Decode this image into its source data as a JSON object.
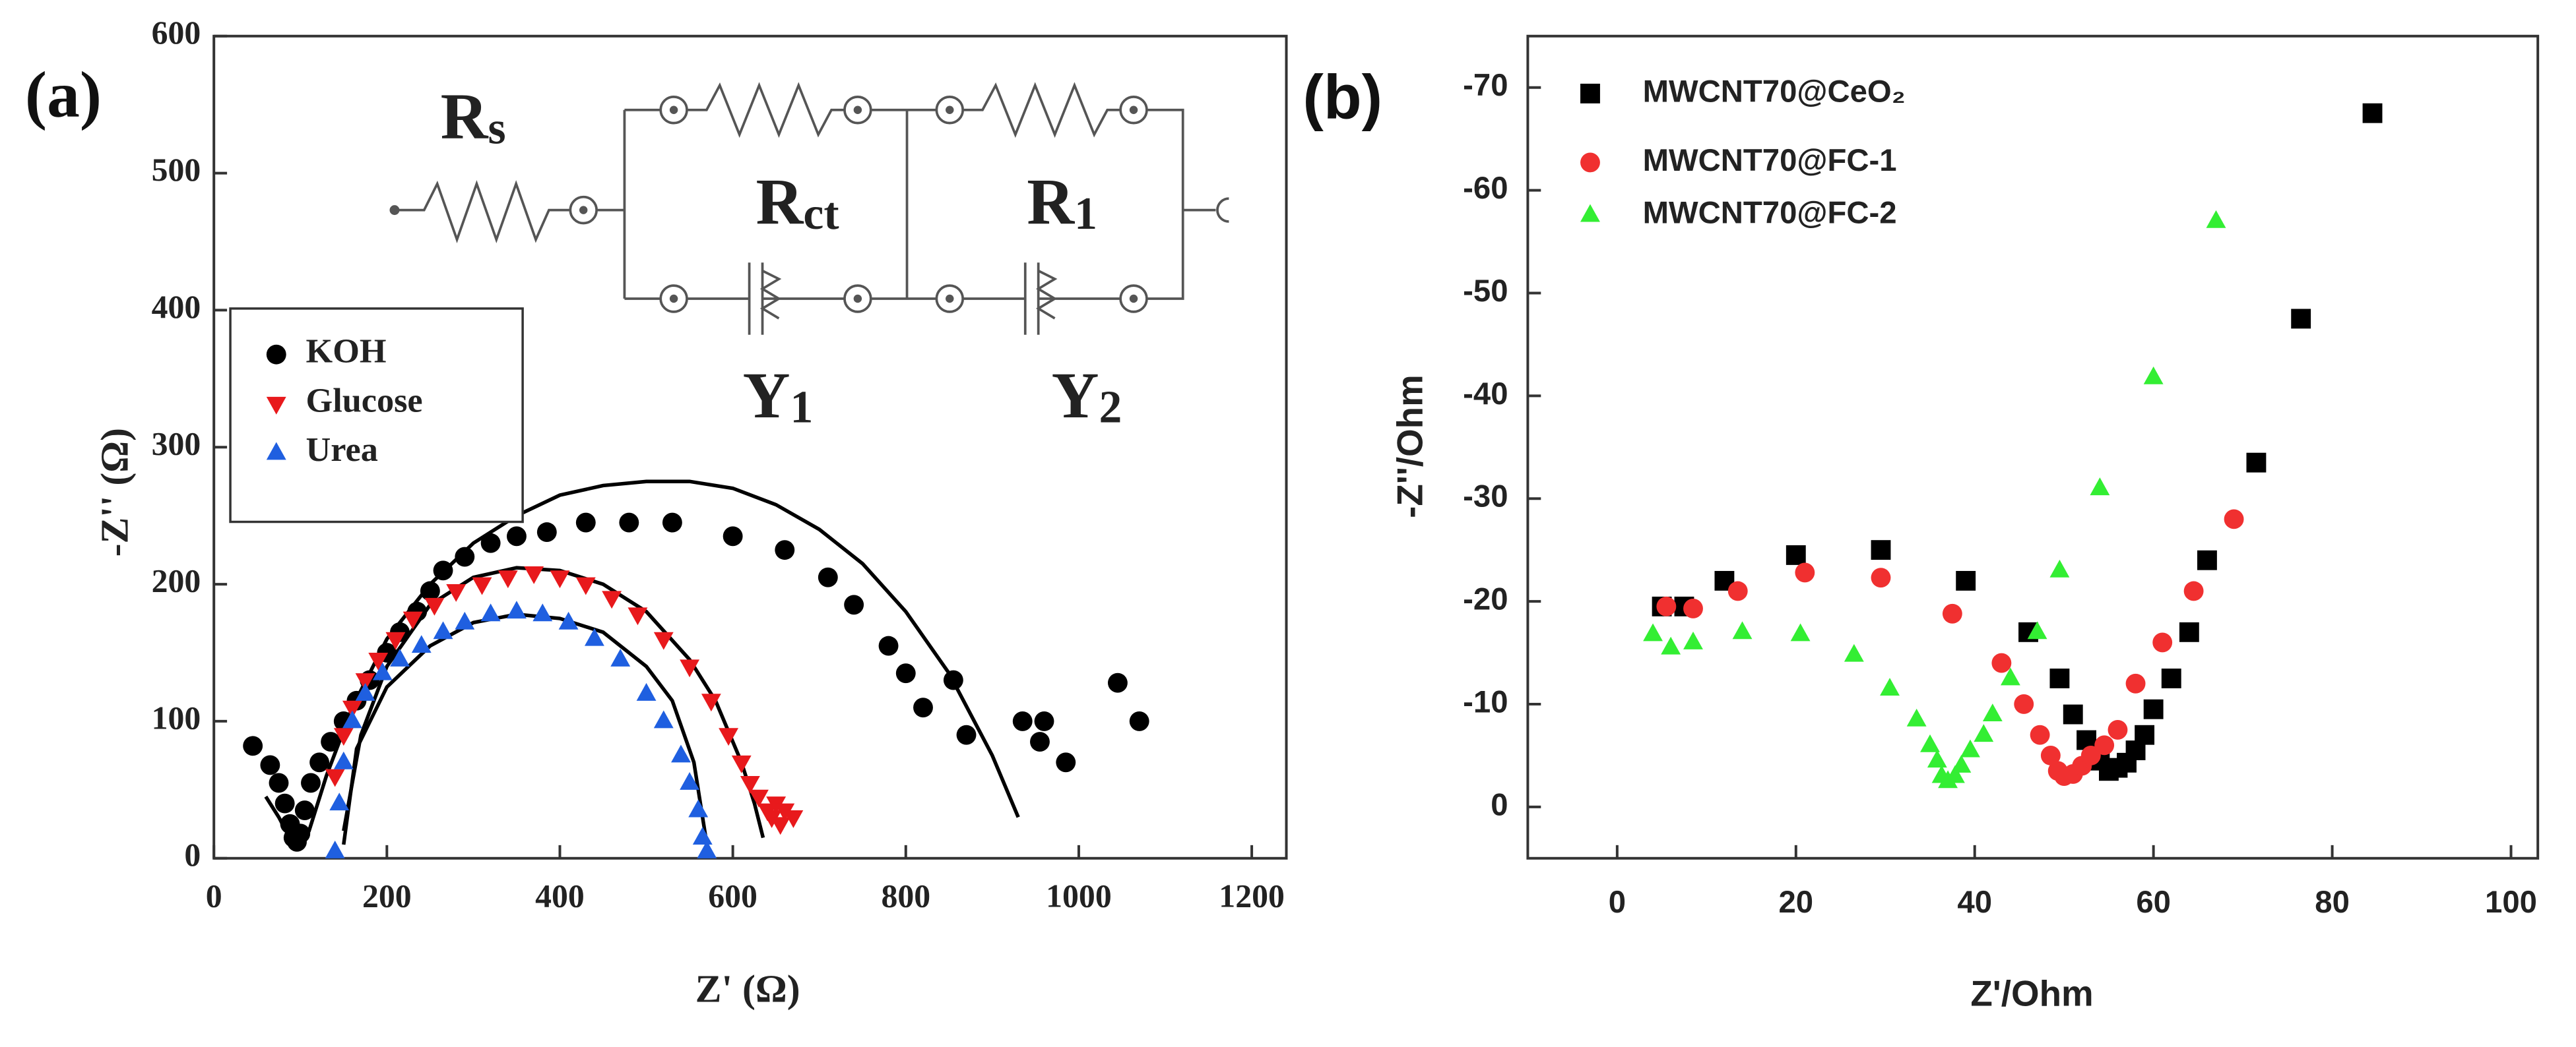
{
  "chart_data": [
    {
      "type": "scatter",
      "panel_label": "(a)",
      "x_label": "Z' (Ω)",
      "y_label": "-Z'' (Ω)",
      "xlim": [
        0,
        1240
      ],
      "ylim": [
        0,
        600
      ],
      "xticks": [
        0,
        200,
        400,
        600,
        800,
        1000,
        1200
      ],
      "yticks": [
        0,
        100,
        200,
        300,
        400,
        500,
        600
      ],
      "legend": "upper left",
      "annotations": [
        "Rs",
        "Rct",
        "R1",
        "Y1",
        "Y2"
      ],
      "series": [
        {
          "name": "KOH",
          "color": "#000000",
          "marker": "circle",
          "x": [
            45,
            65,
            75,
            82,
            88,
            92,
            96,
            100,
            105,
            112,
            122,
            135,
            150,
            165,
            180,
            200,
            215,
            235,
            250,
            265,
            290,
            320,
            350,
            385,
            430,
            480,
            530,
            600,
            660,
            710,
            740,
            780,
            800,
            820,
            855,
            870,
            935,
            955,
            960,
            985,
            1045,
            1070
          ],
          "values": [
            82,
            68,
            55,
            40,
            25,
            15,
            12,
            18,
            35,
            55,
            70,
            85,
            100,
            115,
            130,
            150,
            165,
            180,
            195,
            210,
            220,
            230,
            235,
            238,
            245,
            245,
            245,
            235,
            225,
            205,
            185,
            155,
            135,
            110,
            130,
            90,
            100,
            85,
            100,
            70,
            128,
            100
          ]
        },
        {
          "name": "Glucose",
          "color": "#e8191c",
          "marker": "triangle-down",
          "x": [
            140,
            150,
            160,
            175,
            190,
            210,
            230,
            255,
            280,
            310,
            340,
            370,
            400,
            430,
            460,
            490,
            520,
            550,
            575,
            595,
            610,
            620,
            630,
            640,
            645,
            650,
            655,
            660,
            670
          ],
          "values": [
            60,
            90,
            110,
            130,
            145,
            160,
            175,
            185,
            195,
            200,
            205,
            208,
            205,
            200,
            190,
            178,
            160,
            140,
            115,
            90,
            70,
            55,
            45,
            35,
            30,
            40,
            25,
            35,
            30
          ]
        },
        {
          "name": "Urea",
          "color": "#1f5fe0",
          "marker": "triangle",
          "x": [
            140,
            145,
            150,
            160,
            175,
            195,
            215,
            240,
            265,
            290,
            320,
            350,
            380,
            410,
            440,
            470,
            500,
            520,
            540,
            550,
            560,
            565,
            570
          ],
          "values": [
            5,
            40,
            70,
            100,
            120,
            135,
            145,
            155,
            165,
            172,
            178,
            180,
            178,
            172,
            160,
            145,
            120,
            100,
            75,
            55,
            35,
            15,
            5
          ]
        }
      ],
      "fits": [
        {
          "color": "#000000",
          "x": [
            60,
            75,
            90,
            100,
            110,
            130,
            160,
            200,
            250,
            300,
            350,
            400,
            450,
            500,
            550,
            600,
            650,
            700,
            750,
            800,
            850,
            900,
            930
          ],
          "values": [
            45,
            30,
            12,
            8,
            20,
            60,
            110,
            160,
            200,
            230,
            250,
            265,
            272,
            275,
            275,
            270,
            258,
            240,
            215,
            180,
            135,
            75,
            30
          ]
        },
        {
          "color": "#000000",
          "x": [
            150,
            170,
            200,
            250,
            300,
            350,
            400,
            450,
            500,
            550,
            580,
            610,
            625,
            635
          ],
          "values": [
            20,
            90,
            140,
            185,
            205,
            212,
            210,
            200,
            180,
            145,
            115,
            70,
            40,
            15
          ]
        },
        {
          "color": "#000000",
          "x": [
            150,
            165,
            200,
            250,
            300,
            350,
            400,
            450,
            500,
            530,
            555,
            570
          ],
          "values": [
            10,
            80,
            125,
            155,
            172,
            178,
            175,
            165,
            140,
            115,
            70,
            10
          ]
        }
      ]
    },
    {
      "type": "scatter",
      "panel_label": "(b)",
      "x_label": "Z'/Ohm",
      "y_label": "-Z''/Ohm",
      "xlim": [
        -10,
        103
      ],
      "ylim": [
        5,
        -75
      ],
      "xticks": [
        0,
        20,
        40,
        60,
        80,
        100
      ],
      "yticks": [
        0,
        -10,
        -20,
        -30,
        -40,
        -50,
        -60,
        -70
      ],
      "legend": "upper left",
      "series": [
        {
          "name": "MWCNT70@CeO₂",
          "color": "#000000",
          "marker": "square",
          "x": [
            5,
            7.5,
            12,
            20,
            29.5,
            39,
            46,
            49.5,
            51,
            52.5,
            54,
            55,
            56,
            57,
            58,
            59,
            60,
            62,
            64,
            66,
            71.5,
            76.5,
            84.5
          ],
          "values": [
            -19.5,
            -19.5,
            -22,
            -24.5,
            -25,
            -22,
            -17,
            -12.5,
            -9,
            -6.5,
            -4.5,
            -3.5,
            -3.8,
            -4.3,
            -5.5,
            -7,
            -9.5,
            -12.5,
            -17,
            -24,
            -33.5,
            -47.5,
            -67.5
          ]
        },
        {
          "name": "MWCNT70@FC-1",
          "color": "#f03030",
          "marker": "circle",
          "x": [
            5.5,
            8.5,
            13.5,
            21,
            29.5,
            37.5,
            43,
            45.5,
            47.3,
            48.5,
            49.3,
            50,
            51,
            52,
            53,
            54.5,
            56,
            58,
            61,
            64.5,
            69
          ],
          "values": [
            -19.5,
            -19.3,
            -21,
            -22.8,
            -22.3,
            -18.8,
            -14,
            -10,
            -7,
            -5,
            -3.5,
            -3,
            -3.2,
            -4,
            -5,
            -6,
            -7.5,
            -12,
            -16,
            -21,
            -28
          ]
        },
        {
          "name": "MWCNT70@FC-2",
          "color": "#33ee33",
          "marker": "triangle",
          "x": [
            4,
            6,
            8.5,
            14,
            20.5,
            26.5,
            30.5,
            33.5,
            35,
            35.8,
            36.3,
            37,
            37.8,
            38.5,
            39.5,
            41,
            42,
            44,
            47,
            49.5,
            54,
            60,
            67
          ],
          "values": [
            -16.8,
            -15.5,
            -16,
            -17,
            -16.8,
            -14.8,
            -11.5,
            -8.5,
            -6,
            -4.5,
            -3,
            -2.5,
            -3,
            -4,
            -5.5,
            -7,
            -9,
            -12.5,
            -17,
            -23,
            -31,
            -41.8,
            -57
          ]
        }
      ]
    }
  ]
}
